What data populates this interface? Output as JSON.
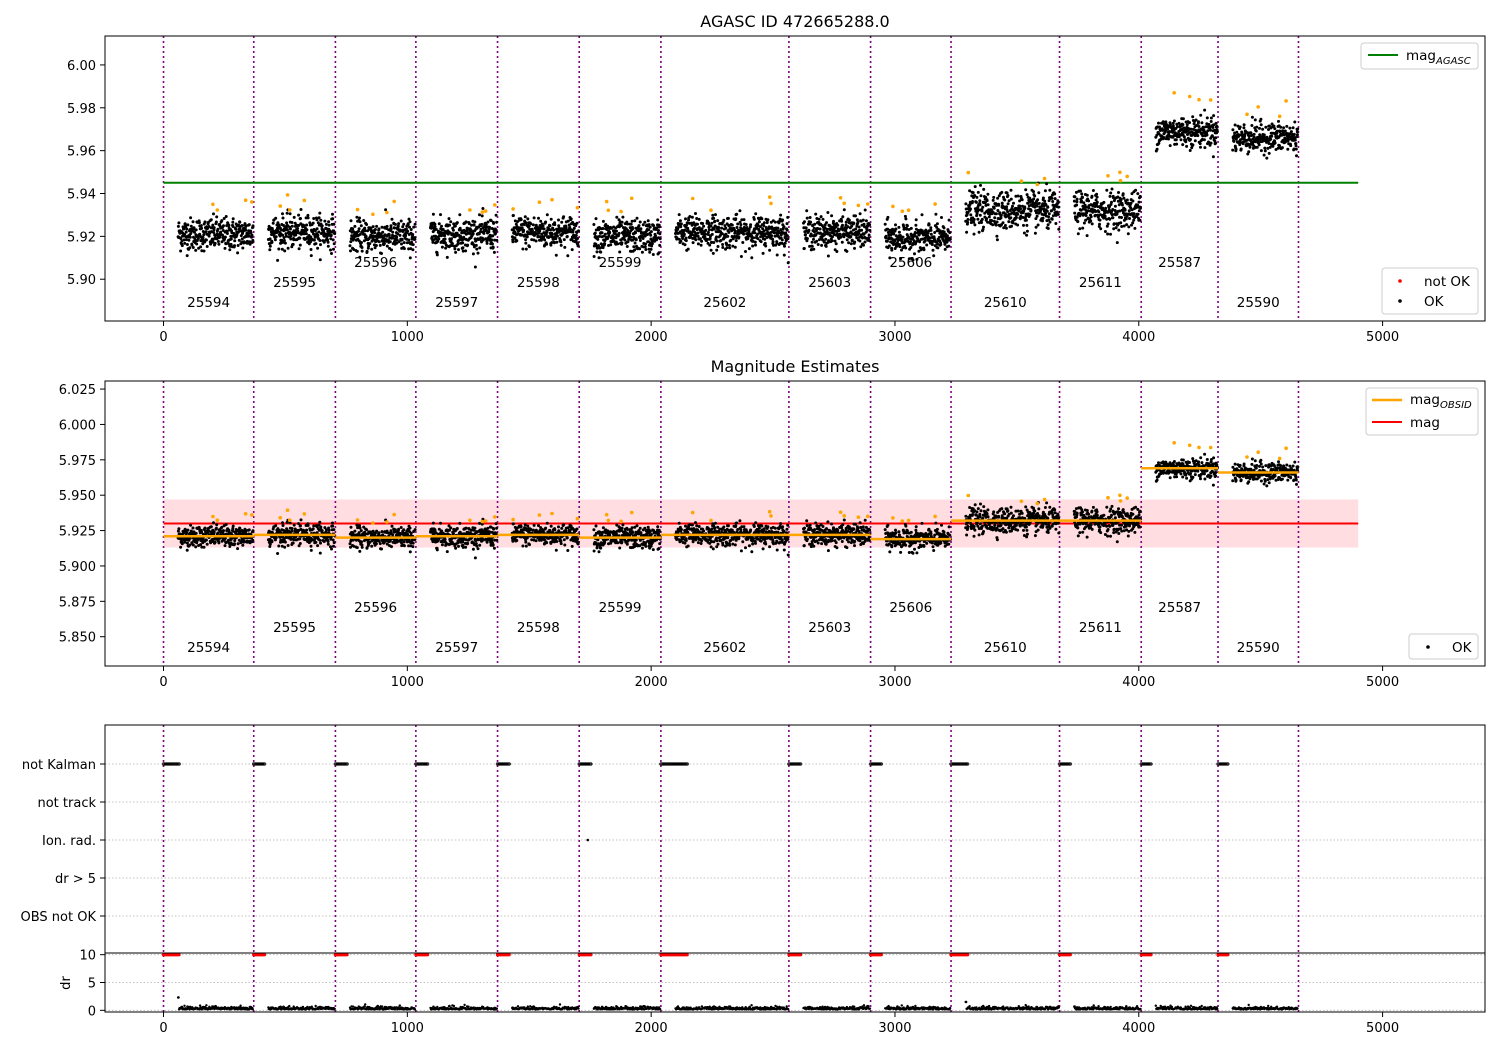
{
  "chart_data": [
    {
      "type": "scatter",
      "title": "AGASC ID 472665288.0",
      "xlim": [
        -240,
        5420
      ],
      "ylim": [
        5.8805,
        6.0135
      ],
      "x_ticks": [
        0,
        1000,
        2000,
        3000,
        4000,
        5000
      ],
      "y_ticks": [
        5.9,
        5.92,
        5.94,
        5.96,
        5.98,
        6.0
      ],
      "y_tick_labels": [
        "5.90",
        "5.92",
        "5.94",
        "5.96",
        "5.98",
        "6.00"
      ],
      "grid": false,
      "legend_position": "top-right and bottom-right",
      "reference_line": {
        "name": "mag",
        "subscript": "AGASC",
        "value": 5.945,
        "x_range": [
          0,
          4900
        ],
        "color": "#008000"
      },
      "legend_points": [
        {
          "label": "not OK",
          "color": "#ff0000"
        },
        {
          "label": "OK",
          "color": "#000000"
        }
      ]
    },
    {
      "type": "scatter",
      "title": "Magnitude Estimates",
      "xlim": [
        -240,
        5420
      ],
      "ylim": [
        5.8293,
        6.0307
      ],
      "x_ticks": [
        0,
        1000,
        2000,
        3000,
        4000,
        5000
      ],
      "y_ticks": [
        5.85,
        5.875,
        5.9,
        5.925,
        5.95,
        5.975,
        6.0,
        6.025
      ],
      "y_tick_labels": [
        "5.850",
        "5.875",
        "5.900",
        "5.925",
        "5.950",
        "5.975",
        "6.000",
        "6.025"
      ],
      "grid": false,
      "legend_position": "top-right and bottom-right",
      "mean_line": {
        "name": "mag",
        "value": 5.93,
        "band": [
          5.913,
          5.947
        ],
        "x_range": [
          0,
          4900
        ],
        "color": "#ff0000",
        "band_color": "#ffdde0"
      },
      "obsid_line": {
        "name": "mag",
        "subscript": "OBSID",
        "color": "#ffa500"
      },
      "legend_points": [
        {
          "label": "OK",
          "color": "#000000"
        }
      ]
    },
    {
      "type": "scatter",
      "title": "",
      "xlim": [
        -240,
        5420
      ],
      "x_ticks": [
        0,
        1000,
        2000,
        3000,
        4000,
        5000
      ],
      "flag_rows": [
        "not Kalman",
        "not track",
        "Ion. rad.",
        "dr > 5",
        "OBS not OK"
      ],
      "dr_ylabel": "dr",
      "dr_ylim": [
        -0.3,
        10.3
      ],
      "dr_ticks": [
        0,
        5,
        10
      ],
      "ion_rad_points": [
        1740
      ],
      "not_kalman_segments": [
        [
          0,
          65
        ],
        [
          370,
          415
        ],
        [
          705,
          755
        ],
        [
          1035,
          1085
        ],
        [
          1370,
          1420
        ],
        [
          1705,
          1755
        ],
        [
          2040,
          2150
        ],
        [
          2565,
          2615
        ],
        [
          2900,
          2945
        ],
        [
          3230,
          3300
        ],
        [
          3675,
          3720
        ],
        [
          4010,
          4050
        ],
        [
          4325,
          4365
        ]
      ]
    }
  ],
  "shared": {
    "x_ticks_labels": [
      "0",
      "1000",
      "2000",
      "3000",
      "4000",
      "5000"
    ],
    "obsid_boundaries": [
      0,
      370,
      705,
      1035,
      1370,
      1705,
      2040,
      2565,
      2900,
      3230,
      3675,
      4010,
      4325,
      4655
    ],
    "observations": [
      {
        "obsid": "25594",
        "start": 0,
        "end": 370,
        "mag": 5.921,
        "level": 0
      },
      {
        "obsid": "25595",
        "start": 370,
        "end": 705,
        "mag": 5.922,
        "level": 1
      },
      {
        "obsid": "25596",
        "start": 705,
        "end": 1035,
        "mag": 5.92,
        "level": 2
      },
      {
        "obsid": "25597",
        "start": 1035,
        "end": 1370,
        "mag": 5.921,
        "level": 0
      },
      {
        "obsid": "25598",
        "start": 1370,
        "end": 1705,
        "mag": 5.922,
        "level": 1
      },
      {
        "obsid": "25599",
        "start": 1705,
        "end": 2040,
        "mag": 5.92,
        "level": 2
      },
      {
        "obsid": "25602",
        "start": 2040,
        "end": 2565,
        "mag": 5.922,
        "level": 0
      },
      {
        "obsid": "25603",
        "start": 2565,
        "end": 2900,
        "mag": 5.922,
        "level": 1
      },
      {
        "obsid": "25606",
        "start": 2900,
        "end": 3230,
        "mag": 5.919,
        "level": 2
      },
      {
        "obsid": "25610",
        "start": 3230,
        "end": 3675,
        "mag": 5.932,
        "level": 0
      },
      {
        "obsid": "25611",
        "start": 3675,
        "end": 4010,
        "mag": 5.932,
        "level": 1
      },
      {
        "obsid": "25587",
        "start": 4010,
        "end": 4325,
        "mag": 5.969,
        "level": 2
      },
      {
        "obsid": "25590",
        "start": 4325,
        "end": 4655,
        "mag": 5.966,
        "level": 0
      }
    ]
  }
}
